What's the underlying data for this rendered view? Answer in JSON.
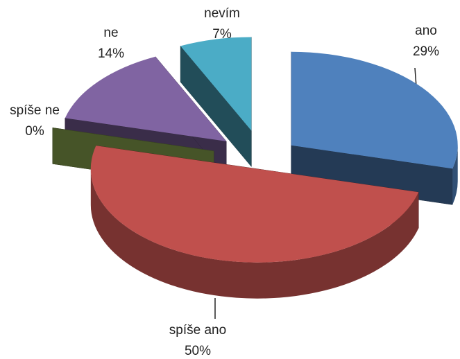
{
  "chart_data": {
    "type": "pie3d",
    "categories": [
      "ano",
      "spíše ano",
      "spíše ne",
      "ne",
      "nevím"
    ],
    "values": [
      29,
      50,
      0,
      14,
      7
    ],
    "value_labels": [
      "29%",
      "50%",
      "0%",
      "14%",
      "7%"
    ],
    "colors": [
      "#4f81bd",
      "#c0504d",
      "#9bbb59",
      "#8064a2",
      "#4bacc6"
    ]
  }
}
